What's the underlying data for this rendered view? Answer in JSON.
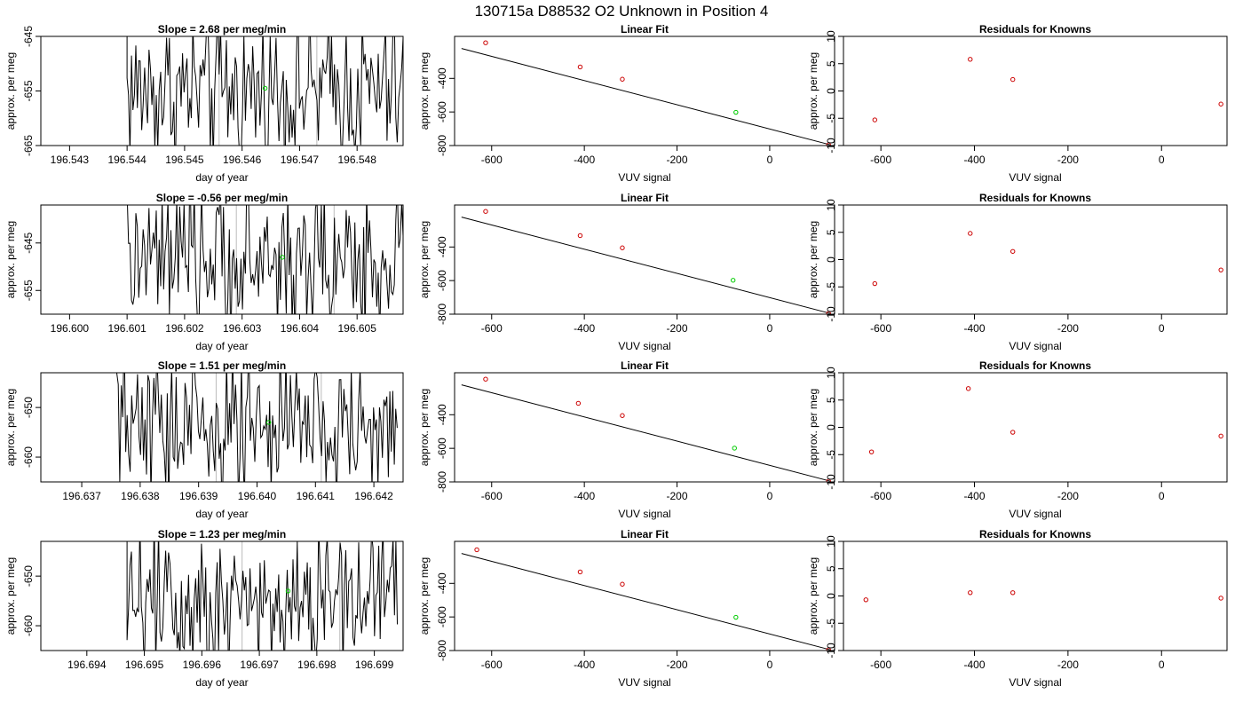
{
  "figure_title": "130715a     D88532   O2 Unknown in Position  4",
  "chart_data": [
    {
      "type": "line",
      "row": 1,
      "panel": "time",
      "title": "Slope =  2.68  per meg/min",
      "xlabel": "day of year",
      "ylabel": "approx. per meg",
      "xlim": [
        196.5425,
        196.5488
      ],
      "ylim": [
        -665,
        -645
      ],
      "xticks": [
        "196.543",
        "196.544",
        "196.545",
        "196.546",
        "196.547",
        "196.548"
      ],
      "yticks": [
        "-645",
        "-655",
        "-665"
      ],
      "vlines": [
        196.5456,
        196.5473
      ],
      "point": {
        "x": 196.5464,
        "y": -654.5,
        "color": "#00cc00"
      },
      "trace": {
        "start": 196.544,
        "end": 196.5488,
        "n": 190,
        "mean": -655,
        "amp": 7
      }
    },
    {
      "type": "scatter",
      "row": 1,
      "panel": "fit",
      "title": "Linear Fit",
      "xlabel": "VUV signal",
      "ylabel": "approx. per meg",
      "xlim": [
        -680,
        140
      ],
      "ylim": [
        -800,
        -150
      ],
      "xticks": [
        "-600",
        "-400",
        "-200",
        "0"
      ],
      "yticks": [
        "-400",
        "-600",
        "-800"
      ],
      "line": {
        "x": [
          -665,
          130
        ],
        "y": [
          -222,
          -795
        ]
      },
      "points": [
        {
          "x": -613,
          "y": -188
        },
        {
          "x": -409,
          "y": -332
        },
        {
          "x": -318,
          "y": -405
        },
        {
          "x": 127,
          "y": -796
        }
      ],
      "unknown": {
        "x": -73,
        "y": -602
      }
    },
    {
      "type": "scatter",
      "row": 1,
      "panel": "resid",
      "title": "Residuals for Knowns",
      "xlabel": "VUV signal",
      "ylabel": "approx. per meg",
      "xlim": [
        -680,
        140
      ],
      "ylim": [
        -10,
        10
      ],
      "xticks": [
        "-600",
        "-400",
        "-200",
        "0"
      ],
      "yticks": [
        "10",
        "5",
        "0",
        "-5",
        "-10"
      ],
      "points": [
        {
          "x": -613,
          "y": -5.3
        },
        {
          "x": -409,
          "y": 5.8
        },
        {
          "x": -318,
          "y": 2.1
        },
        {
          "x": 127,
          "y": -2.4
        }
      ]
    },
    {
      "type": "line",
      "row": 2,
      "panel": "time",
      "title": "Slope =  -0.56  per meg/min",
      "xlabel": "day of year",
      "ylabel": "approx. per meg",
      "xlim": [
        196.5995,
        196.6058
      ],
      "ylim": [
        -660,
        -637
      ],
      "xticks": [
        "196.600",
        "196.601",
        "196.602",
        "196.603",
        "196.604",
        "196.605"
      ],
      "yticks": [
        "-645",
        "-655"
      ],
      "vlines": [
        196.6029,
        196.6046
      ],
      "point": {
        "x": 196.6037,
        "y": -648,
        "color": "#00cc00"
      },
      "trace": {
        "start": 196.601,
        "end": 196.6058,
        "n": 190,
        "mean": -649,
        "amp": 8
      }
    },
    {
      "type": "scatter",
      "row": 2,
      "panel": "fit",
      "title": "Linear Fit",
      "xlabel": "VUV signal",
      "ylabel": "approx. per meg",
      "xlim": [
        -680,
        140
      ],
      "ylim": [
        -800,
        -150
      ],
      "xticks": [
        "-600",
        "-400",
        "-200",
        "0"
      ],
      "yticks": [
        "-400",
        "-600",
        "-800"
      ],
      "line": {
        "x": [
          -665,
          130
        ],
        "y": [
          -222,
          -795
        ]
      },
      "points": [
        {
          "x": -613,
          "y": -188
        },
        {
          "x": -409,
          "y": -332
        },
        {
          "x": -318,
          "y": -405
        },
        {
          "x": 127,
          "y": -796
        }
      ],
      "unknown": {
        "x": -79,
        "y": -598
      }
    },
    {
      "type": "scatter",
      "row": 2,
      "panel": "resid",
      "title": "Residuals for Knowns",
      "xlabel": "VUV signal",
      "ylabel": "approx. per meg",
      "xlim": [
        -680,
        140
      ],
      "ylim": [
        -10,
        10
      ],
      "xticks": [
        "-600",
        "-400",
        "-200",
        "0"
      ],
      "yticks": [
        "10",
        "5",
        "0",
        "-5",
        "-10"
      ],
      "points": [
        {
          "x": -613,
          "y": -4.4
        },
        {
          "x": -409,
          "y": 4.8
        },
        {
          "x": -318,
          "y": 1.5
        },
        {
          "x": 127,
          "y": -1.9
        }
      ]
    },
    {
      "type": "line",
      "row": 3,
      "panel": "time",
      "title": "Slope =  1.51  per meg/min",
      "xlabel": "day of year",
      "ylabel": "approx. per meg",
      "xlim": [
        196.6363,
        196.6425
      ],
      "ylim": [
        -665,
        -643
      ],
      "xticks": [
        "196.637",
        "196.638",
        "196.639",
        "196.640",
        "196.641",
        "196.642"
      ],
      "yticks": [
        "-650",
        "-660"
      ],
      "vlines": [
        196.6393,
        196.6411
      ],
      "point": {
        "x": 196.6402,
        "y": -653,
        "color": "#00cc00"
      },
      "trace": {
        "start": 196.6376,
        "end": 196.6424,
        "n": 190,
        "mean": -654,
        "amp": 8
      }
    },
    {
      "type": "scatter",
      "row": 3,
      "panel": "fit",
      "title": "Linear Fit",
      "xlabel": "VUV signal",
      "ylabel": "approx. per meg",
      "xlim": [
        -680,
        140
      ],
      "ylim": [
        -800,
        -150
      ],
      "xticks": [
        "-600",
        "-400",
        "-200",
        "0"
      ],
      "yticks": [
        "-400",
        "-600",
        "-800"
      ],
      "line": {
        "x": [
          -665,
          130
        ],
        "y": [
          -222,
          -795
        ]
      },
      "points": [
        {
          "x": -613,
          "y": -188
        },
        {
          "x": -413,
          "y": -332
        },
        {
          "x": -318,
          "y": -405
        },
        {
          "x": 127,
          "y": -796
        }
      ],
      "unknown": {
        "x": -76,
        "y": -599
      }
    },
    {
      "type": "scatter",
      "row": 3,
      "panel": "resid",
      "title": "Residuals for Knowns",
      "xlabel": "VUV signal",
      "ylabel": "approx. per meg",
      "xlim": [
        -680,
        140
      ],
      "ylim": [
        -10,
        10
      ],
      "xticks": [
        "-600",
        "-400",
        "-200",
        "0"
      ],
      "yticks": [
        "10",
        "5",
        "0",
        "-5",
        "-10"
      ],
      "points": [
        {
          "x": -620,
          "y": -4.5
        },
        {
          "x": -413,
          "y": 7.1
        },
        {
          "x": -318,
          "y": -0.9
        },
        {
          "x": 127,
          "y": -1.6
        }
      ]
    },
    {
      "type": "line",
      "row": 4,
      "panel": "time",
      "title": "Slope =  1.23  per meg/min",
      "xlabel": "day of year",
      "ylabel": "approx. per meg",
      "xlim": [
        196.6932,
        196.6995
      ],
      "ylim": [
        -665,
        -643
      ],
      "xticks": [
        "196.694",
        "196.695",
        "196.696",
        "196.697",
        "196.698",
        "196.699"
      ],
      "yticks": [
        "-650",
        "-660"
      ],
      "vlines": [
        196.6967,
        196.6984
      ],
      "point": {
        "x": 196.6975,
        "y": -653,
        "color": "#00cc00"
      },
      "trace": {
        "start": 196.6947,
        "end": 196.6994,
        "n": 190,
        "mean": -654,
        "amp": 8
      }
    },
    {
      "type": "scatter",
      "row": 4,
      "panel": "fit",
      "title": "Linear Fit",
      "xlabel": "VUV signal",
      "ylabel": "approx. per meg",
      "xlim": [
        -680,
        140
      ],
      "ylim": [
        -800,
        -150
      ],
      "xticks": [
        "-600",
        "-400",
        "-200",
        "0"
      ],
      "yticks": [
        "-400",
        "-600",
        "-800"
      ],
      "line": {
        "x": [
          -665,
          130
        ],
        "y": [
          -222,
          -795
        ]
      },
      "points": [
        {
          "x": -632,
          "y": -200
        },
        {
          "x": -409,
          "y": -332
        },
        {
          "x": -318,
          "y": -405
        },
        {
          "x": 127,
          "y": -796
        }
      ],
      "unknown": {
        "x": -73,
        "y": -602
      }
    },
    {
      "type": "scatter",
      "row": 4,
      "panel": "resid",
      "title": "Residuals for Knowns",
      "xlabel": "VUV signal",
      "ylabel": "approx. per meg",
      "xlim": [
        -680,
        140
      ],
      "ylim": [
        -10,
        10
      ],
      "xticks": [
        "-600",
        "-400",
        "-200",
        "0"
      ],
      "yticks": [
        "10",
        "5",
        "0",
        "-5",
        "-10"
      ],
      "points": [
        {
          "x": -632,
          "y": -0.7
        },
        {
          "x": -409,
          "y": 0.6
        },
        {
          "x": -318,
          "y": 0.6
        },
        {
          "x": 127,
          "y": -0.4
        }
      ]
    }
  ],
  "colors": {
    "known": "#cc0000",
    "unknown": "#00cc00",
    "line": "#000000",
    "vline": "#bbbbbb"
  }
}
